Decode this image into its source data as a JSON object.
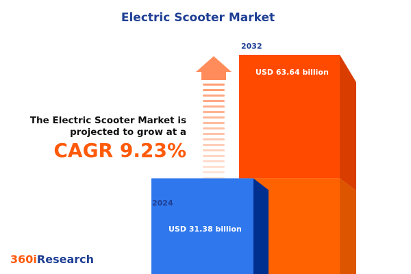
{
  "title": "Electric Scooter Market",
  "description_line1": "The Electric Scooter Market is",
  "description_line2": "projected to grow at a",
  "cagr": "CAGR 9.23%",
  "logo": {
    "part1": "360i",
    "part2": "Research"
  },
  "colors": {
    "bar_2024": "#2f77ec",
    "bar_2032": "#ff4a00",
    "title": "#1f3f94",
    "accent": "#ff5a0a"
  },
  "chart_data": {
    "type": "bar",
    "categories": [
      "2024",
      "2032"
    ],
    "values": [
      31.38,
      63.64
    ],
    "unit": "USD billion",
    "data_labels": [
      "USD 31.38 billion",
      "USD 63.64 billion"
    ]
  }
}
